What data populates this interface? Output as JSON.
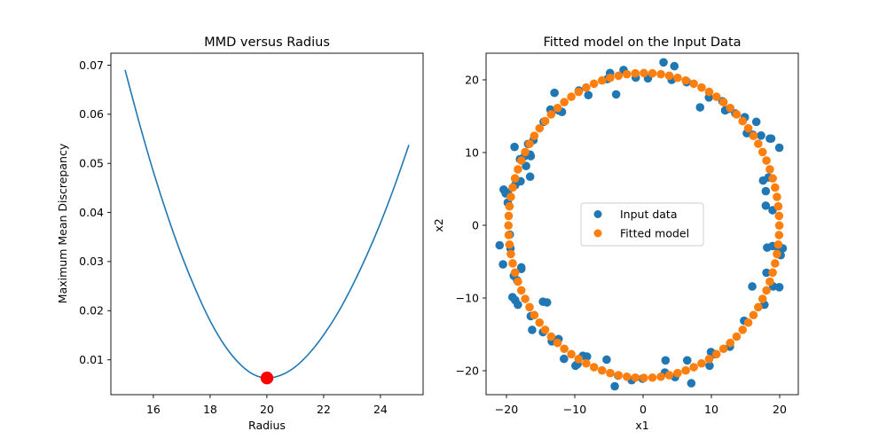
{
  "chart_data": [
    {
      "type": "line",
      "title": "MMD versus Radius",
      "xlabel": "Radius",
      "ylabel": "Maximum Mean Discrepancy",
      "xlim": [
        14.5,
        25.5
      ],
      "ylim": [
        0.0026,
        0.0722
      ],
      "xticks": [
        16,
        18,
        20,
        22,
        24
      ],
      "yticks": [
        0.01,
        0.02,
        0.03,
        0.04,
        0.05,
        0.06,
        0.07
      ],
      "xtick_labels": [
        "16",
        "18",
        "20",
        "22",
        "24"
      ],
      "ytick_labels": [
        "0.01",
        "0.02",
        "0.03",
        "0.04",
        "0.05",
        "0.06",
        "0.07"
      ],
      "series": [
        {
          "color": "#1f77b4",
          "x": [
            15,
            15.5,
            16,
            16.5,
            17,
            17.5,
            18,
            18.5,
            19,
            19.5,
            20,
            20.5,
            21,
            21.5,
            22,
            22.5,
            23,
            23.5,
            24,
            24.5,
            25
          ],
          "y": [
            0.0688,
            0.058,
            0.048,
            0.039,
            0.0309,
            0.0238,
            0.0176,
            0.0127,
            0.0091,
            0.0068,
            0.006,
            0.0066,
            0.0083,
            0.0111,
            0.0148,
            0.0193,
            0.0247,
            0.0308,
            0.0376,
            0.0452,
            0.0535
          ]
        }
      ],
      "highlight": {
        "x": 20,
        "y": 0.006,
        "color": "#ff0000"
      }
    },
    {
      "type": "scatter",
      "title": "Fitted model on the Input Data",
      "xlabel": "x1",
      "ylabel": "x2",
      "xlim": [
        -23.3,
        22.8
      ],
      "ylim": [
        -22.2,
        22.6
      ],
      "xticks": [
        -20,
        -10,
        0,
        10,
        20
      ],
      "yticks": [
        -20,
        -10,
        0,
        10,
        20
      ],
      "xtick_labels": [
        "−20",
        "−10",
        "0",
        "10",
        "20"
      ],
      "ytick_labels": [
        "−20",
        "−10",
        "0",
        "10",
        "20"
      ],
      "legend": {
        "position": "center",
        "entries": [
          "Input data",
          "Fitted model"
        ]
      },
      "series": [
        {
          "name": "Input data",
          "color": "#1f77b4",
          "points": [
            [
              -3.0,
              20.4
            ],
            [
              -5.0,
              20.0
            ],
            [
              2.9,
              21.4
            ],
            [
              4.5,
              20.9
            ],
            [
              -1.2,
              19.4
            ],
            [
              -4.1,
              17.2
            ],
            [
              -9.6,
              17.7
            ],
            [
              -13.2,
              17.4
            ],
            [
              -12.6,
              15.1
            ],
            [
              -13.8,
              15.2
            ],
            [
              -14.8,
              13.6
            ],
            [
              -16.3,
              11.2
            ],
            [
              -17.1,
              10.7
            ],
            [
              -19.1,
              10.3
            ],
            [
              -17.6,
              9.1
            ],
            [
              -16.8,
              9.3
            ],
            [
              -18.3,
              8.7
            ],
            [
              -17.4,
              7.8
            ],
            [
              -16.8,
              6.4
            ],
            [
              -19.0,
              5.3
            ],
            [
              -20.7,
              4.7
            ],
            [
              -20.1,
              4.3
            ],
            [
              -20.1,
              3.0
            ],
            [
              -19.8,
              -1.2
            ],
            [
              -21.3,
              -2.6
            ],
            [
              -19.7,
              -3.0
            ],
            [
              -20.8,
              -5.1
            ],
            [
              -18.1,
              -5.7
            ],
            [
              -19.2,
              -6.6
            ],
            [
              -18.7,
              -7.2
            ],
            [
              -19.4,
              -9.4
            ],
            [
              -19.0,
              -9.8
            ],
            [
              -18.6,
              -10.4
            ],
            [
              -16.7,
              -11.9
            ],
            [
              -14.9,
              -10.0
            ],
            [
              -14.3,
              -10.1
            ],
            [
              -16.5,
              -13.7
            ],
            [
              -14.9,
              -14.0
            ],
            [
              -12.6,
              -14.9
            ],
            [
              -13.6,
              -15.2
            ],
            [
              -11.8,
              -17.5
            ],
            [
              -10.1,
              -18.4
            ],
            [
              -9.0,
              -17.1
            ],
            [
              -8.4,
              -17.2
            ],
            [
              -9.8,
              -18.2
            ],
            [
              -5.5,
              -17.6
            ],
            [
              -4.3,
              -21.1
            ],
            [
              -3.8,
              -19.7
            ],
            [
              -1.8,
              -20.3
            ],
            [
              -0.2,
              -20.1
            ],
            [
              3.2,
              -17.7
            ],
            [
              3.1,
              -19.3
            ],
            [
              7.0,
              -20.7
            ],
            [
              4.6,
              -19.9
            ],
            [
              6.4,
              -17.7
            ],
            [
              9.7,
              -18.4
            ],
            [
              9.9,
              -16.6
            ],
            [
              10.5,
              -16.9
            ],
            [
              12.7,
              -15.9
            ],
            [
              14.8,
              -12.5
            ],
            [
              17.8,
              -10.4
            ],
            [
              16.0,
              -8.0
            ],
            [
              19.1,
              -8.0
            ],
            [
              18.1,
              -6.2
            ],
            [
              20.0,
              -8.1
            ],
            [
              19.9,
              -3.4
            ],
            [
              20.5,
              -3.0
            ],
            [
              18.2,
              -2.9
            ],
            [
              20.2,
              -3.9
            ],
            [
              19.0,
              -2.7
            ],
            [
              18.0,
              4.5
            ],
            [
              18.0,
              2.6
            ],
            [
              19.0,
              2.0
            ],
            [
              18.4,
              6.3
            ],
            [
              17.6,
              5.9
            ],
            [
              20.0,
              10.2
            ],
            [
              18.8,
              11.4
            ],
            [
              18.6,
              11.4
            ],
            [
              17.3,
              11.8
            ],
            [
              16.1,
              11.9
            ],
            [
              15.2,
              12.1
            ],
            [
              16.6,
              13.6
            ],
            [
              14.9,
              14.2
            ],
            [
              13.5,
              14.7
            ],
            [
              12.0,
              15.1
            ],
            [
              12.6,
              15.3
            ],
            [
              11.6,
              16.3
            ],
            [
              9.6,
              16.8
            ],
            [
              8.3,
              15.5
            ],
            [
              6.3,
              18.8
            ],
            [
              6.3,
              18.9
            ],
            [
              4.1,
              19.1
            ],
            [
              0.6,
              19.3
            ],
            [
              -5.4,
              19.2
            ],
            [
              -8.2,
              17.1
            ],
            [
              -12.1,
              14.9
            ],
            [
              -16.7,
              9.1
            ],
            [
              -18.2,
              5.8
            ],
            [
              -20.4,
              4.2
            ],
            [
              -18.1,
              -5.5
            ]
          ]
        },
        {
          "name": "Fitted model",
          "color": "#ff7f0e",
          "circle": {
            "center": [
              0,
              0
            ],
            "radius": 20,
            "count": 100
          }
        }
      ]
    }
  ]
}
